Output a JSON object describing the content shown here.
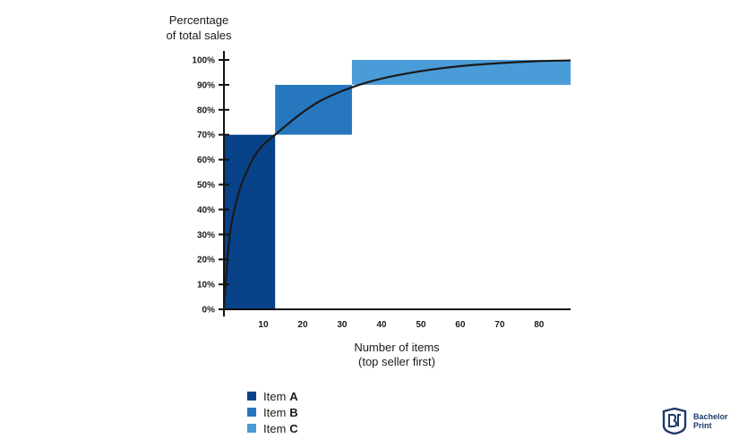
{
  "chart_data": {
    "type": "bar",
    "title": "",
    "ylabel_line1": "Percentage",
    "ylabel_line2": "of total sales",
    "xlabel_line1": "Number of items",
    "xlabel_line2": "(top seller first)",
    "xlim": [
      0,
      88
    ],
    "ylim": [
      0,
      100
    ],
    "x_ticks": [
      10,
      20,
      30,
      40,
      50,
      60,
      70,
      80
    ],
    "y_ticks": [
      0,
      10,
      20,
      30,
      40,
      50,
      60,
      70,
      80,
      90,
      100
    ],
    "y_tick_labels": [
      "0%",
      "10%",
      "20%",
      "30%",
      "40%",
      "50%",
      "60%",
      "70%",
      "80%",
      "90%",
      "100%"
    ],
    "x_tick_labels": [
      "10",
      "20",
      "30",
      "40",
      "50",
      "60",
      "70",
      "80"
    ],
    "series": [
      {
        "name": "Item A",
        "x_start": 0,
        "x_end": 13,
        "y_start": 0,
        "y_end": 70,
        "color": "#08438a"
      },
      {
        "name": "Item B",
        "x_start": 13,
        "x_end": 32.5,
        "y_start": 70,
        "y_end": 90,
        "color": "#2777bf"
      },
      {
        "name": "Item C",
        "x_start": 32.5,
        "x_end": 88,
        "y_start": 90,
        "y_end": 100,
        "color": "#4a9cd8"
      }
    ],
    "curve": [
      [
        0,
        0
      ],
      [
        1,
        22
      ],
      [
        2,
        35
      ],
      [
        4,
        48
      ],
      [
        6,
        56
      ],
      [
        8,
        62
      ],
      [
        10,
        66
      ],
      [
        13,
        70
      ],
      [
        16,
        74
      ],
      [
        20,
        79
      ],
      [
        25,
        84
      ],
      [
        32.5,
        89
      ],
      [
        40,
        92.5
      ],
      [
        50,
        95.5
      ],
      [
        60,
        97.5
      ],
      [
        70,
        98.7
      ],
      [
        80,
        99.5
      ],
      [
        88,
        99.8
      ]
    ],
    "legend": [
      {
        "prefix": "Item",
        "letter": "A",
        "color": "#08438a"
      },
      {
        "prefix": "Item",
        "letter": "B",
        "color": "#2777bf"
      },
      {
        "prefix": "Item",
        "letter": "C",
        "color": "#4a9cd8"
      }
    ]
  },
  "logo": {
    "line1": "Bachelor",
    "line2": "Print",
    "color": "#1f3a6b"
  }
}
